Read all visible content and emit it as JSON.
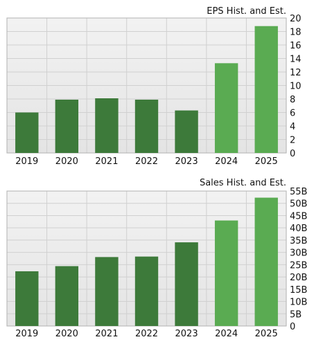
{
  "colors": {
    "historical": "#3d7a3a",
    "estimate": "#5aab52",
    "grid": "#d0d0d0",
    "frame": "#b0b0b0",
    "bg_top": "#f2f2f2",
    "bg_bottom": "#e4e4e4"
  },
  "chart_data": [
    {
      "type": "bar",
      "title": "EPS Hist. and Est.",
      "categories": [
        "2019",
        "2020",
        "2021",
        "2022",
        "2023",
        "2024",
        "2025"
      ],
      "values": [
        6.0,
        7.9,
        8.1,
        7.9,
        6.3,
        13.3,
        18.8
      ],
      "estimate_flags": [
        false,
        false,
        false,
        false,
        false,
        true,
        true
      ],
      "ylim": [
        0,
        20
      ],
      "yticks": [
        0,
        2,
        4,
        6,
        8,
        10,
        12,
        14,
        16,
        18,
        20
      ],
      "ytick_labels": [
        "0",
        "2",
        "4",
        "6",
        "8",
        "10",
        "12",
        "14",
        "16",
        "18",
        "20"
      ],
      "grid": true,
      "y_axis_position": "right"
    },
    {
      "type": "bar",
      "title": "Sales Hist. and Est.",
      "categories": [
        "2019",
        "2020",
        "2021",
        "2022",
        "2023",
        "2024",
        "2025"
      ],
      "values": [
        22.3,
        24.4,
        28.1,
        28.3,
        34.1,
        43.0,
        52.3
      ],
      "estimate_flags": [
        false,
        false,
        false,
        false,
        false,
        true,
        true
      ],
      "ylim": [
        0,
        55
      ],
      "yticks": [
        0,
        5,
        10,
        15,
        20,
        25,
        30,
        35,
        40,
        45,
        50,
        55
      ],
      "ytick_labels": [
        "0",
        "5B",
        "10B",
        "15B",
        "20B",
        "25B",
        "30B",
        "35B",
        "40B",
        "45B",
        "50B",
        "55B"
      ],
      "grid": true,
      "y_axis_position": "right"
    }
  ]
}
